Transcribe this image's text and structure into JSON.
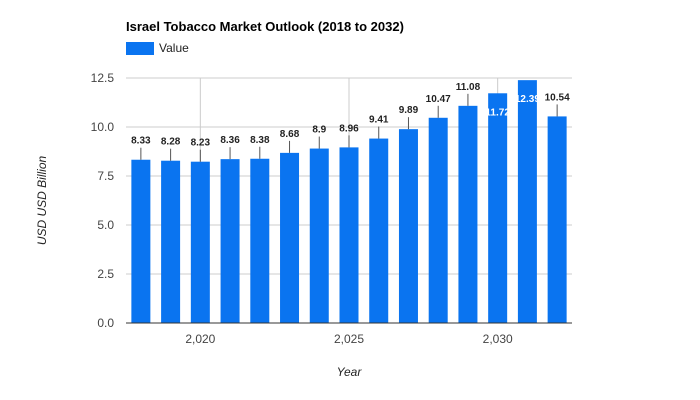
{
  "chart_data": {
    "type": "bar",
    "title": "Israel Tobacco Market Outlook (2018 to 2032)",
    "xlabel": "Year",
    "ylabel": "USD USD Billion",
    "legend": {
      "label": "Value",
      "placement": "top-left"
    },
    "bar_color": "#0a74f0",
    "grid": true,
    "x": [
      2018,
      2019,
      2020,
      2021,
      2022,
      2023,
      2024,
      2025,
      2026,
      2027,
      2028,
      2029,
      2030,
      2031,
      2032
    ],
    "values": [
      8.33,
      8.28,
      8.23,
      8.36,
      8.38,
      8.68,
      8.9,
      8.96,
      9.41,
      9.89,
      10.47,
      11.08,
      11.72,
      12.39,
      10.54
    ],
    "labels": [
      "8.33",
      "8.28",
      "8.23",
      "8.36",
      "8.38",
      "8.68",
      "8.9",
      "8.96",
      "9.41",
      "9.89",
      "10.47",
      "11.08",
      "11.72",
      "12.39",
      "10.54"
    ],
    "ylim": [
      0,
      12.5
    ],
    "yticks": [
      0,
      2.5,
      5,
      7.5,
      10,
      12.5
    ],
    "ytick_labels": [
      "0.0",
      "2.5",
      "5.0",
      "7.5",
      "10.0",
      "12.5"
    ],
    "xticks": [
      2020,
      2025,
      2030
    ],
    "xtick_labels": [
      "2,020",
      "2,025",
      "2,030"
    ]
  }
}
